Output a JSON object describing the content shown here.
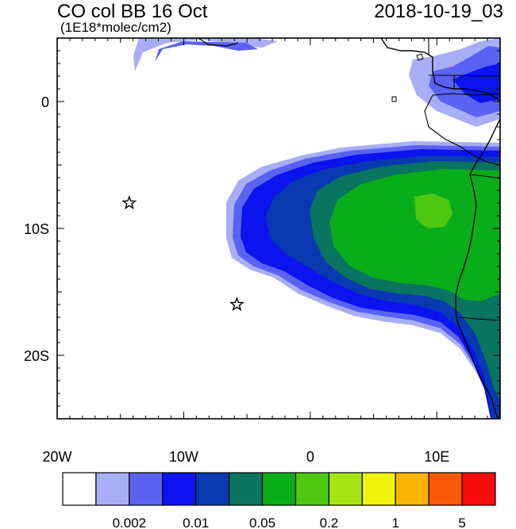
{
  "header": {
    "title": "CO col BB 16 Oct",
    "units": "(1E18*molec/cm2)",
    "datetime": "2018-10-19_03"
  },
  "map": {
    "lon_range": [
      -20,
      15
    ],
    "lat_range": [
      -25,
      5
    ],
    "x_ticks": [
      {
        "label": "20W",
        "lon": -20
      },
      {
        "label": "10W",
        "lon": -10
      },
      {
        "label": "0",
        "lon": 0
      },
      {
        "label": "10E",
        "lon": 10
      }
    ],
    "y_ticks": [
      {
        "label": "0",
        "lat": 0
      },
      {
        "label": "10S",
        "lat": -10
      },
      {
        "label": "20S",
        "lat": -20
      }
    ],
    "markers": [
      {
        "type": "star",
        "lon": -14.3,
        "lat": -8.0
      },
      {
        "type": "star",
        "lon": -5.8,
        "lat": -16.0
      }
    ]
  },
  "colorbar": {
    "colors": [
      "#ffffff",
      "#a8aef5",
      "#5a62f2",
      "#0b13ee",
      "#0839b0",
      "#09745f",
      "#09ad1a",
      "#4fc812",
      "#a8e414",
      "#f2f40d",
      "#fbb306",
      "#f95a07",
      "#f90b0b"
    ],
    "labels": [
      {
        "text": "0.002",
        "boundary": 2
      },
      {
        "text": "0.01",
        "boundary": 4
      },
      {
        "text": "0.05",
        "boundary": 6
      },
      {
        "text": "0.2",
        "boundary": 8
      },
      {
        "text": "1",
        "boundary": 10
      },
      {
        "text": "5",
        "boundary": 12
      }
    ]
  }
}
